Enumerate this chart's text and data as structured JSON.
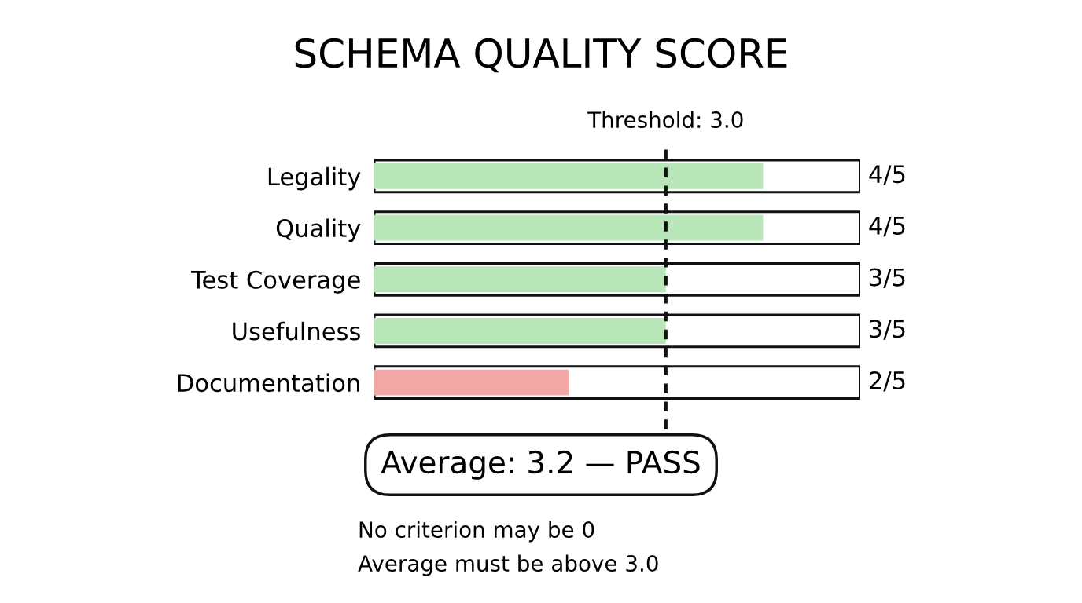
{
  "chart_data": {
    "type": "bar",
    "orientation": "horizontal",
    "title": "SCHEMA QUALITY SCORE",
    "categories": [
      "Legality",
      "Quality",
      "Test Coverage",
      "Usefulness",
      "Documentation"
    ],
    "values": [
      0.8,
      0.8,
      0.6,
      0.6,
      0.4
    ],
    "colors": [
      "#b8e6b8",
      "#b8e6b8",
      "#b8e6b8",
      "#b8e6b8",
      "#f2a7a7"
    ],
    "value_labels": [
      "4/5",
      "4/5",
      "3/5",
      "3/5",
      "2/5"
    ],
    "xlim": [
      0,
      1
    ],
    "tick_labels": "y",
    "grid": false,
    "legend": false,
    "ref_lines": [
      {
        "axis": "x",
        "value": 0.6,
        "color": "#111111",
        "line_style": "dashed"
      }
    ],
    "annotations": [
      "Threshold: 3.0",
      "Average: 3.2 — PASS",
      "No criterion may be 0",
      "Average must be above 3.0"
    ]
  }
}
